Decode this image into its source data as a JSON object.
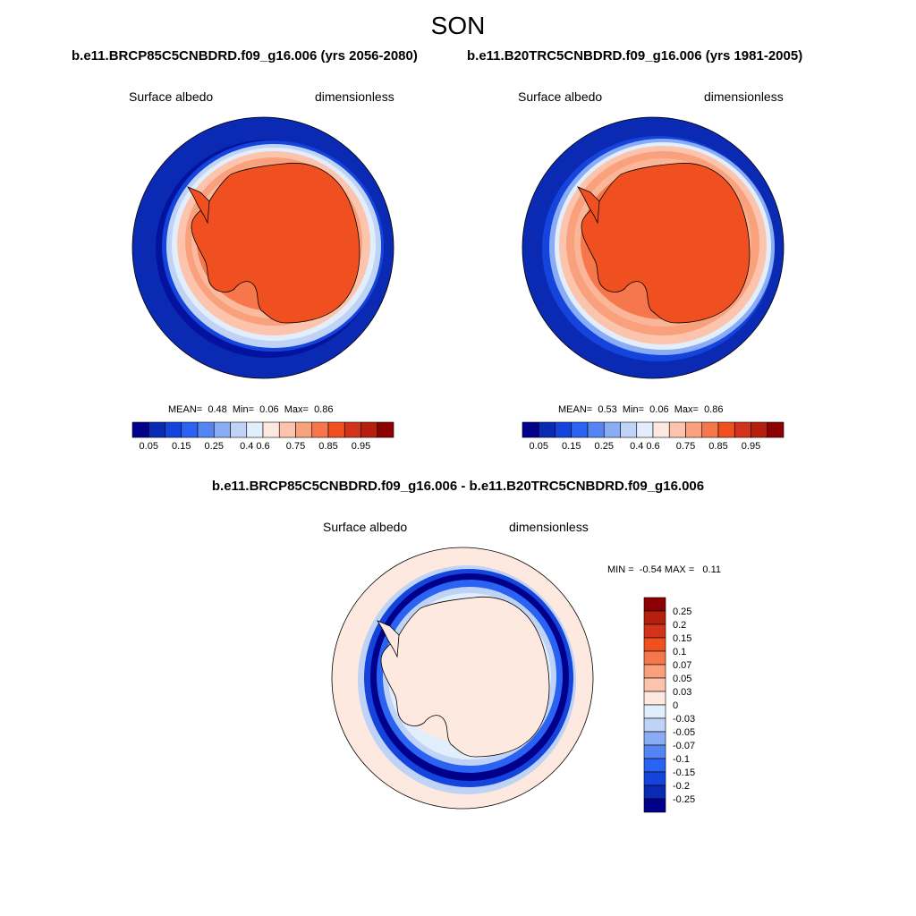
{
  "figure": {
    "title": "SON",
    "difference_title": "b.e11.BRCP85C5CNBDRD.f09_g16.006 - b.e11.B20TRC5CNBDRD.f09_g16.006"
  },
  "panels": [
    {
      "case_title": "b.e11.BRCP85C5CNBDRD.f09_g16.006 (yrs 2056-2080)",
      "variable": "Surface albedo",
      "units": "dimensionless",
      "stats": {
        "mean_label": "MEAN=",
        "mean": "0.48",
        "min_label": "Min=",
        "min": "0.06",
        "max_label": "Max=",
        "max": "0.86"
      }
    },
    {
      "case_title": "b.e11.B20TRC5CNBDRD.f09_g16.006 (yrs 1981-2005)",
      "variable": "Surface albedo",
      "units": "dimensionless",
      "stats": {
        "mean_label": "MEAN=",
        "mean": "0.53",
        "min_label": "Min=",
        "min": "0.06",
        "max_label": "Max=",
        "max": "0.86"
      }
    }
  ],
  "difference_panel": {
    "variable": "Surface albedo",
    "units": "dimensionless",
    "minmax": {
      "min_label": "MIN =",
      "min": "-0.54",
      "max_label": "MAX =",
      "max": "0.11"
    }
  },
  "colorbar_main": {
    "colors": [
      "#00008b",
      "#0a2ab4",
      "#1444dc",
      "#2a62f2",
      "#5585f2",
      "#8aacf5",
      "#bfd3f7",
      "#e3eefc",
      "#fde9df",
      "#fcc4ad",
      "#f9a07c",
      "#f6774b",
      "#f04f20",
      "#d3331a",
      "#b41f0e",
      "#8b0000"
    ],
    "labels": [
      "0.05",
      "0.15",
      "0.25",
      "0.4",
      "0.6",
      "0.75",
      "0.85",
      "0.95"
    ]
  },
  "colorbar_diff": {
    "colors": [
      "#8b0000",
      "#b41f0e",
      "#d3331a",
      "#f04f20",
      "#f6774b",
      "#f9a07c",
      "#fcc4ad",
      "#fde9df",
      "#e3eefc",
      "#bfd3f7",
      "#8aacf5",
      "#5585f2",
      "#2a62f2",
      "#1444dc",
      "#0a2ab4",
      "#00008b"
    ],
    "labels": [
      "0.25",
      "0.2",
      "0.15",
      "0.1",
      "0.07",
      "0.05",
      "0.03",
      "0",
      "-0.03",
      "-0.05",
      "-0.07",
      "-0.1",
      "-0.15",
      "-0.2",
      "-0.25"
    ]
  }
}
